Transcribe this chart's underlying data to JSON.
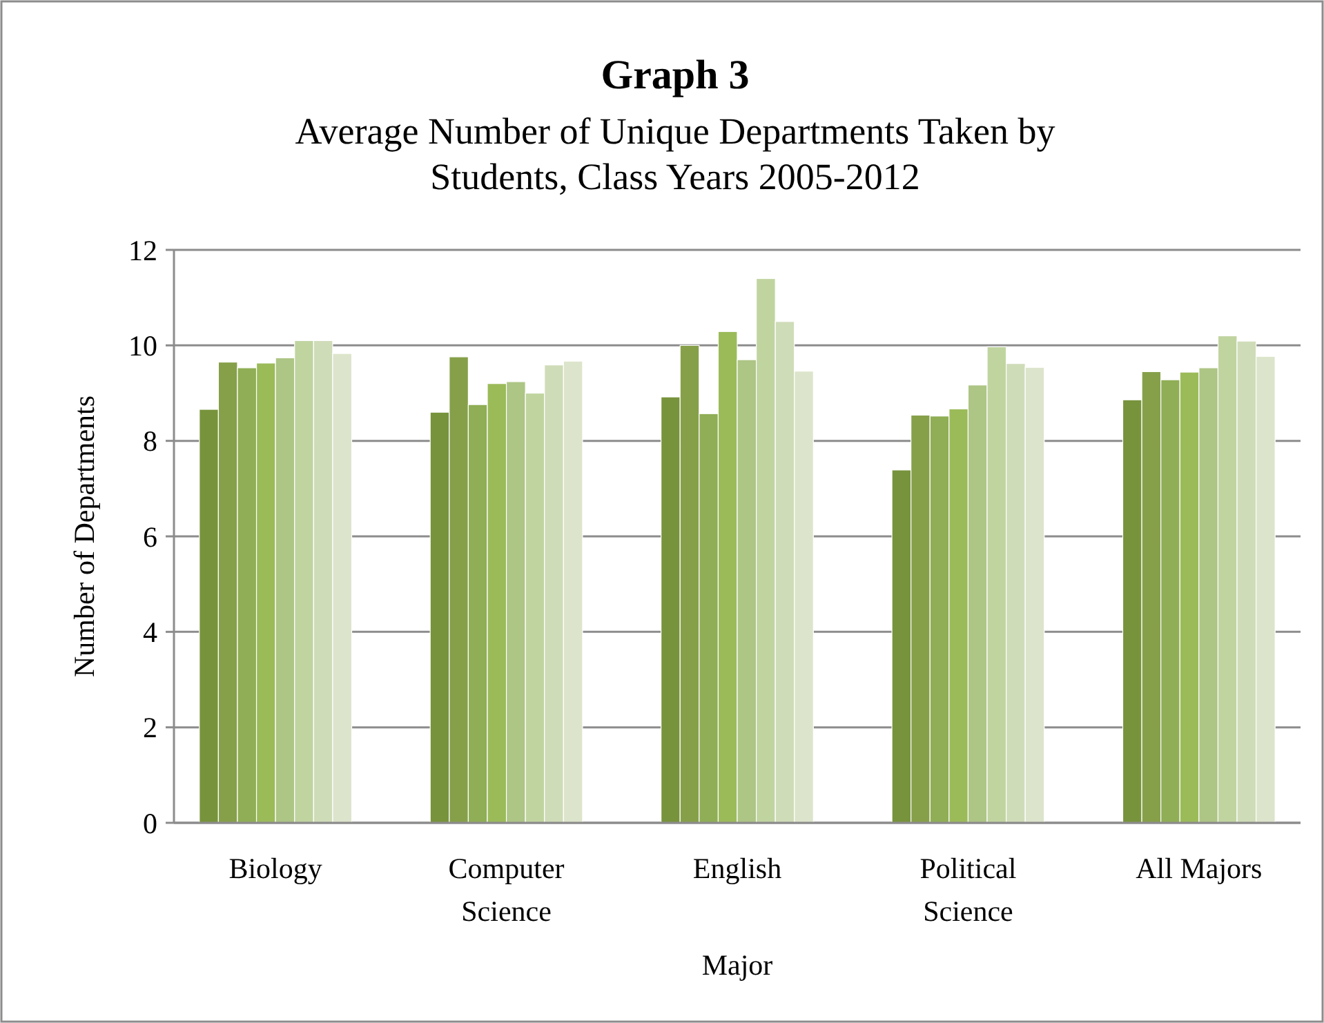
{
  "chart_data": {
    "type": "bar",
    "title": "Graph 3",
    "subtitle": "Average Number of Unique Departments Taken by Students, Class Years 2005-2012",
    "xlabel": "Major",
    "ylabel": "Number of Departments",
    "categories": [
      "Biology",
      "Computer Science",
      "English",
      "Political Science",
      "All Majors"
    ],
    "series": [
      {
        "color": "#77933c",
        "values": [
          8.66,
          8.6,
          8.92,
          7.39,
          8.86
        ]
      },
      {
        "color": "#86a04a",
        "values": [
          9.65,
          9.76,
          10.0,
          8.54,
          9.45
        ]
      },
      {
        "color": "#8fae55",
        "values": [
          9.53,
          8.76,
          8.57,
          8.52,
          9.28
        ]
      },
      {
        "color": "#9bbb59",
        "values": [
          9.63,
          9.2,
          10.29,
          8.67,
          9.44
        ]
      },
      {
        "color": "#adc585",
        "values": [
          9.74,
          9.24,
          9.7,
          9.17,
          9.53
        ]
      },
      {
        "color": "#c0d4a0",
        "values": [
          10.1,
          9.0,
          11.4,
          9.97,
          10.2
        ]
      },
      {
        "color": "#cfdcb8",
        "values": [
          10.1,
          9.59,
          10.5,
          9.62,
          10.09
        ]
      },
      {
        "color": "#dce5cb",
        "values": [
          9.83,
          9.67,
          9.46,
          9.54,
          9.77
        ]
      }
    ],
    "ylim": [
      0,
      12
    ],
    "yticks": [
      0,
      2,
      4,
      6,
      8,
      10,
      12
    ],
    "grid": "y"
  }
}
